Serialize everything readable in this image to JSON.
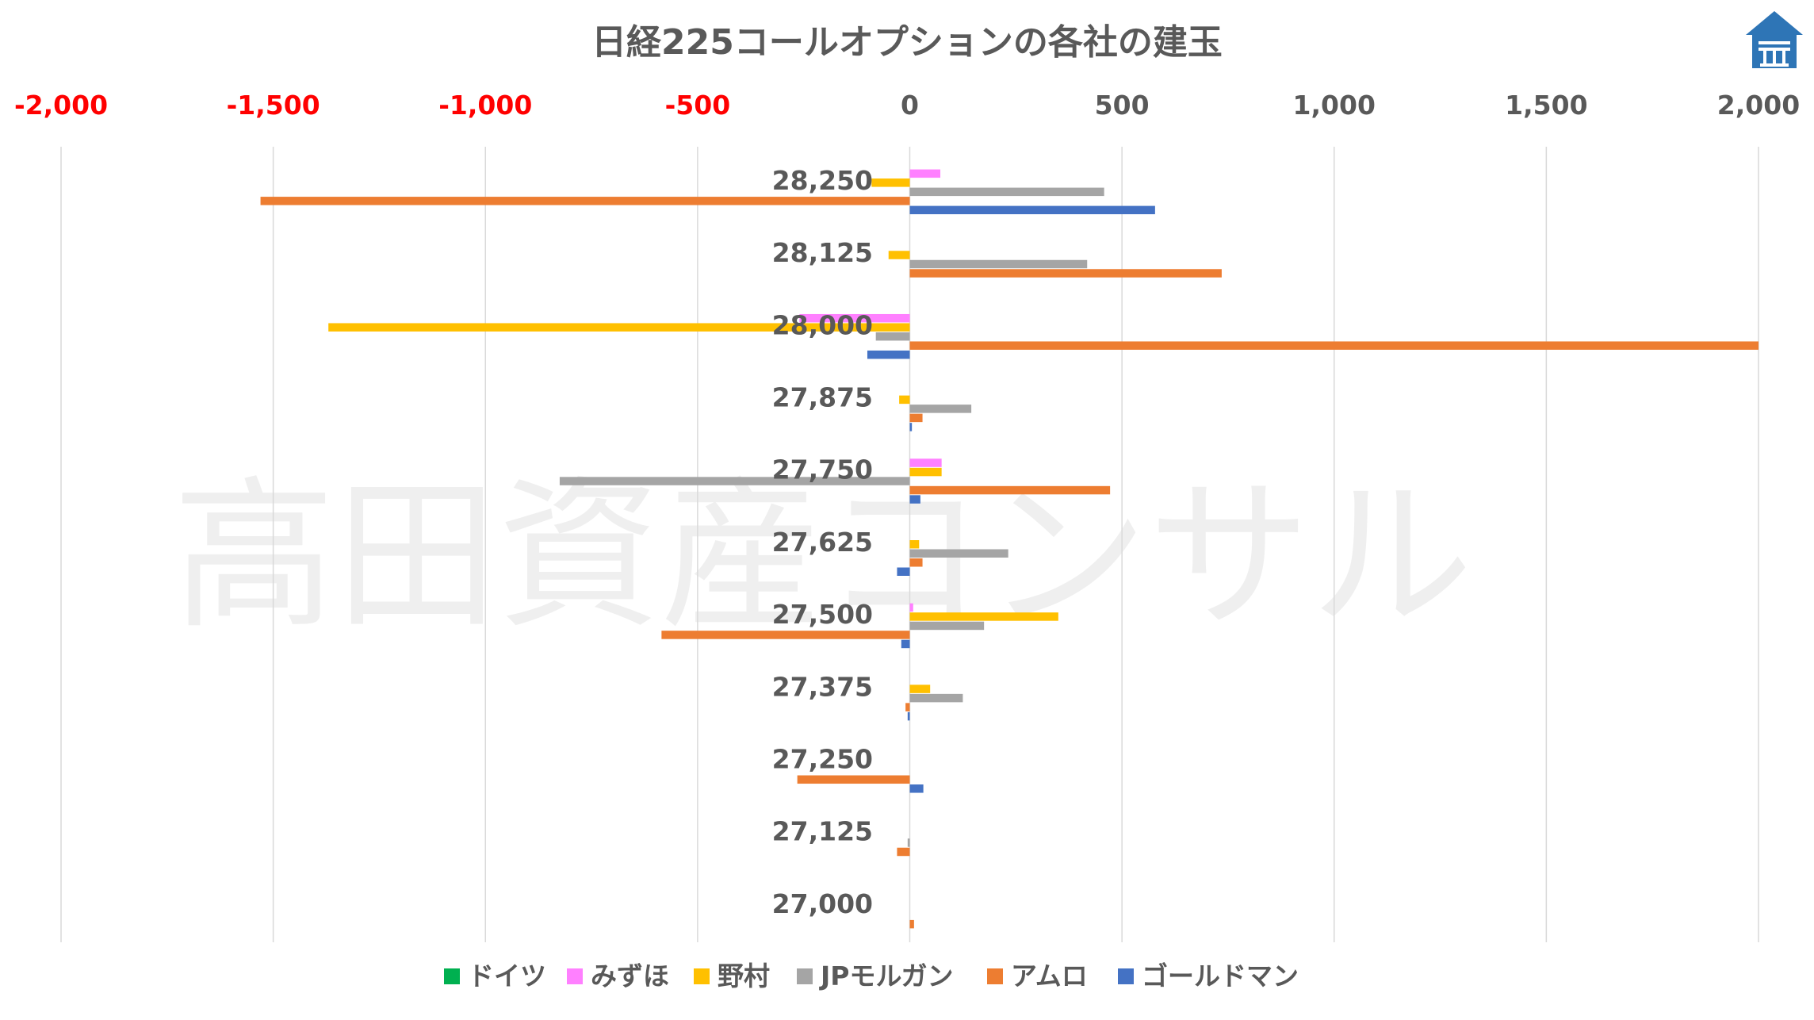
{
  "chart_data": {
    "type": "bar",
    "orientation": "horizontal",
    "title": "日経225コールオプションの各社の建玉",
    "watermark": "高田資産コンサル",
    "xlim": [
      -2000,
      2000
    ],
    "x_ticks": [
      {
        "value": -2000,
        "label": "-2,000"
      },
      {
        "value": -1500,
        "label": "-1,500"
      },
      {
        "value": -1000,
        "label": "-1,000"
      },
      {
        "value": -500,
        "label": "-500"
      },
      {
        "value": 0,
        "label": "0"
      },
      {
        "value": 500,
        "label": "500"
      },
      {
        "value": 1000,
        "label": "1,000"
      },
      {
        "value": 1500,
        "label": "1,500"
      },
      {
        "value": 2000,
        "label": "2,000"
      }
    ],
    "negative_tick_color": "#ff0000",
    "positive_tick_color": "#595959",
    "grid": "vertical",
    "legend_position": "bottom",
    "categories": [
      "28,250",
      "28,125",
      "28,000",
      "27,875",
      "27,750",
      "27,625",
      "27,500",
      "27,375",
      "27,250",
      "27,125",
      "27,000"
    ],
    "series": [
      {
        "name": "ドイツ",
        "color": "#00b050",
        "values": [
          0,
          0,
          0,
          0,
          0,
          0,
          0,
          0,
          0,
          0,
          0
        ]
      },
      {
        "name": "みずほ",
        "color": "#ff80ff",
        "values": [
          72,
          0,
          -260,
          0,
          75,
          0,
          8,
          0,
          0,
          0,
          0
        ]
      },
      {
        "name": "野村",
        "color": "#ffc000",
        "values": [
          -90,
          -50,
          -1370,
          -25,
          75,
          22,
          350,
          48,
          0,
          0,
          0
        ]
      },
      {
        "name": "JPモルガン",
        "color": "#a5a5a5",
        "values": [
          458,
          418,
          -80,
          145,
          -825,
          232,
          175,
          125,
          0,
          -5,
          0
        ]
      },
      {
        "name": "アムロ",
        "color": "#ed7d31",
        "values": [
          -1530,
          735,
          2000,
          30,
          472,
          30,
          -585,
          -10,
          -265,
          -30,
          10
        ]
      },
      {
        "name": "ゴールドマン",
        "color": "#4472c4",
        "values": [
          578,
          0,
          -100,
          5,
          25,
          -30,
          -20,
          -5,
          32,
          0,
          0
        ]
      }
    ]
  },
  "logo": {
    "name": "takata-logo",
    "color": "#2e75b6"
  }
}
